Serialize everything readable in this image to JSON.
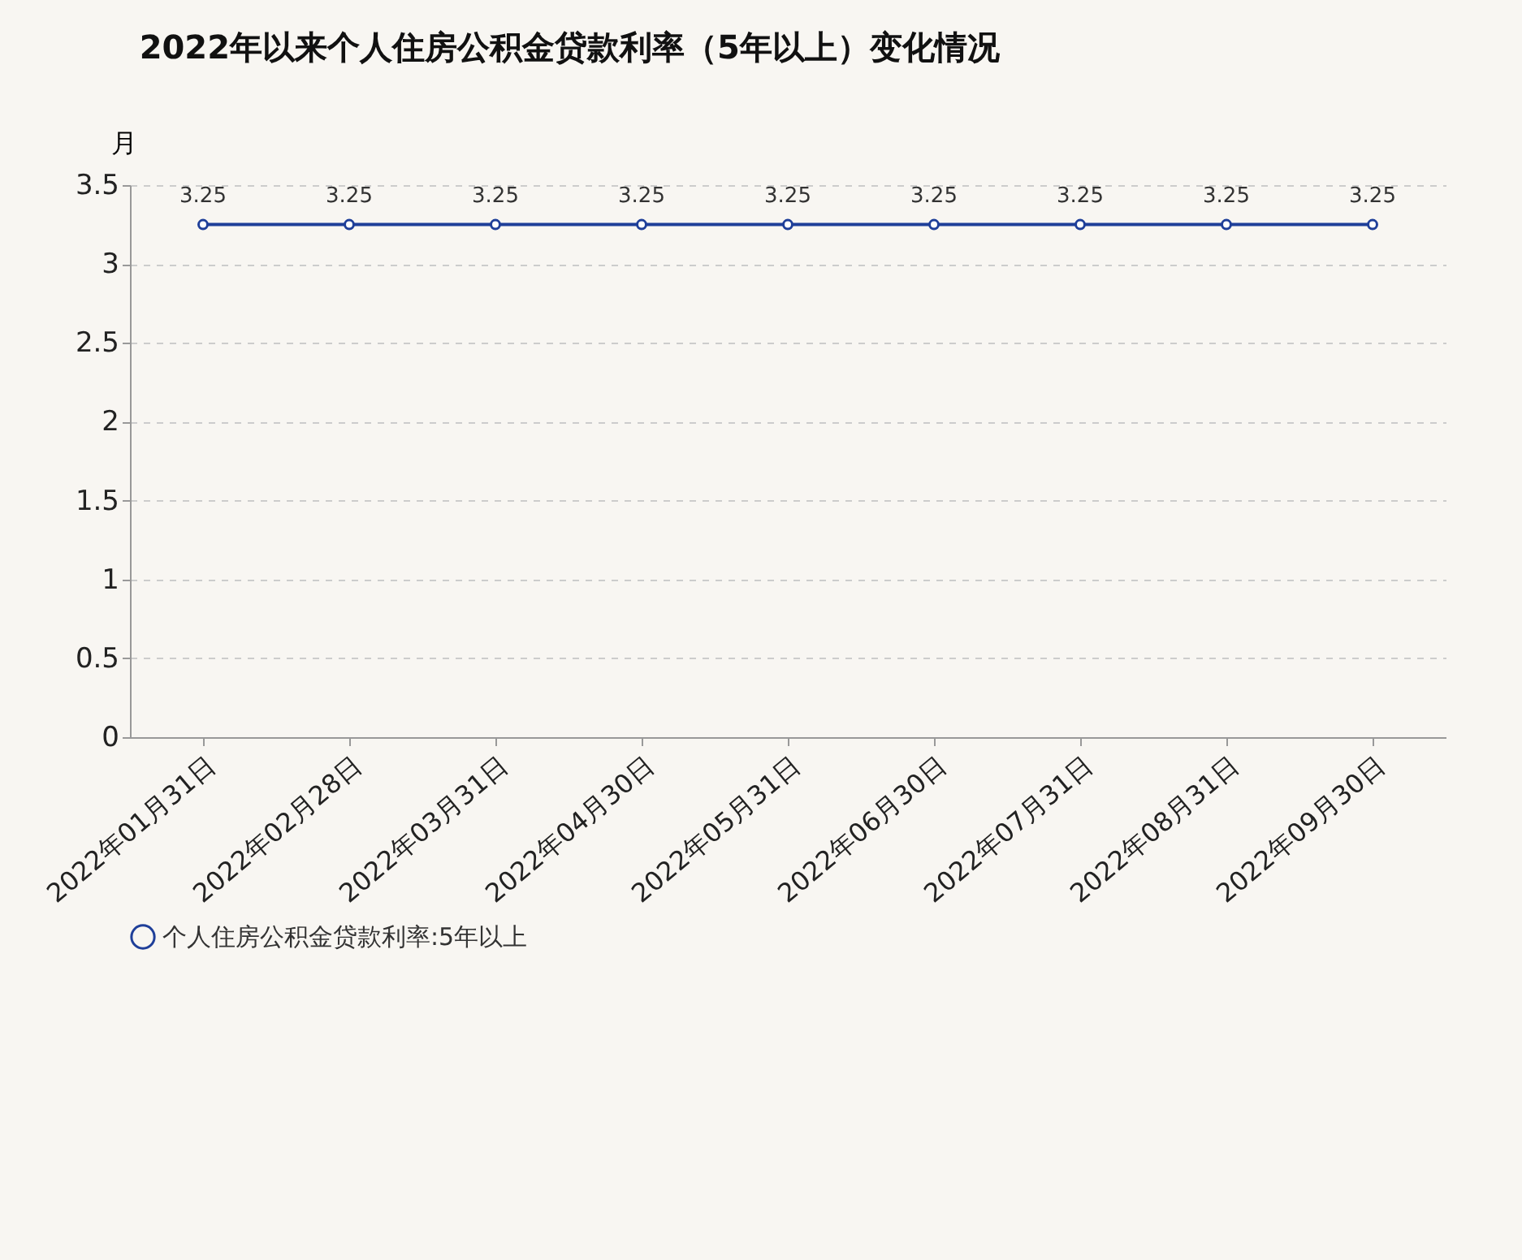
{
  "chart_data": {
    "type": "line",
    "title": "2022年以来个人住房公积金贷款利率（5年以上）变化情况",
    "ylabel": "月",
    "categories": [
      "2022年01月31日",
      "2022年02月28日",
      "2022年03月31日",
      "2022年04月30日",
      "2022年05月31日",
      "2022年06月30日",
      "2022年07月31日",
      "2022年08月31日",
      "2022年09月30日"
    ],
    "series": [
      {
        "name": "个人住房公积金贷款利率:5年以上",
        "color": "#1f3f99",
        "values": [
          3.25,
          3.25,
          3.25,
          3.25,
          3.25,
          3.25,
          3.25,
          3.25,
          3.25
        ]
      }
    ],
    "ylim": [
      0,
      3.5
    ],
    "yticks": [
      0,
      0.5,
      1,
      1.5,
      2,
      2.5,
      3,
      3.5
    ],
    "grid": "y",
    "legend": "bottom",
    "marker": "circle",
    "line_style": "solid",
    "data_labels": true
  }
}
